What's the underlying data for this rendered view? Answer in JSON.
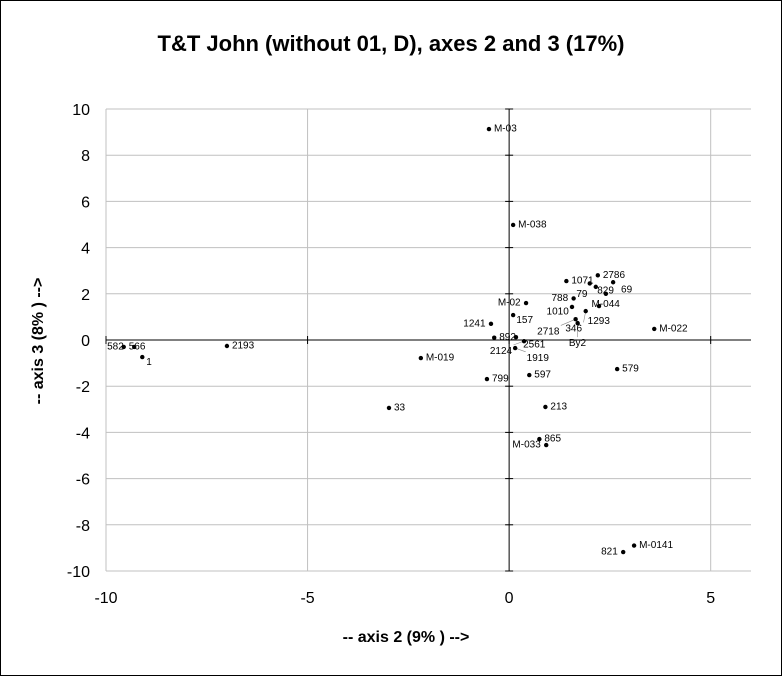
{
  "chart_data": {
    "type": "scatter",
    "title": "T&T John (without 01, D), axes  2 and  3 (17%)",
    "xlabel": "-- axis 2 (9% ) -->",
    "ylabel": "-- axis 3 (8% )  -->",
    "xlim": [
      -10,
      6
    ],
    "ylim": [
      -10,
      10
    ],
    "xticks": [
      -10,
      -5,
      0,
      5
    ],
    "yticks": [
      -10,
      -8,
      -6,
      -4,
      -2,
      0,
      2,
      4,
      6,
      8,
      10
    ],
    "grid": true,
    "points": [
      {
        "label": "M-03",
        "x": -0.5,
        "y": 9.13
      },
      {
        "label": "M-038",
        "x": 0.1,
        "y": 4.98
      },
      {
        "label": "1071",
        "x": 1.42,
        "y": 2.55
      },
      {
        "label": "2786",
        "x": 2.2,
        "y": 2.8
      },
      {
        "label": "829",
        "x": 2.0,
        "y": 2.45
      },
      {
        "label": "79",
        "x": 2.15,
        "y": 2.3
      },
      {
        "label": "69",
        "x": 2.58,
        "y": 2.5
      },
      {
        "label": "M-044",
        "x": 2.4,
        "y": 2.0
      },
      {
        "label": "788",
        "x": 1.6,
        "y": 1.8
      },
      {
        "label": "1010",
        "x": 1.56,
        "y": 1.43
      },
      {
        "label": "1293",
        "x": 2.23,
        "y": 1.47
      },
      {
        "label": "346",
        "x": 1.9,
        "y": 1.25
      },
      {
        "label": "2718",
        "x": 1.65,
        "y": 0.9
      },
      {
        "label": "By2",
        "x": 1.7,
        "y": 0.73
      },
      {
        "label": "M-02",
        "x": 0.42,
        "y": 1.6
      },
      {
        "label": "157",
        "x": 0.1,
        "y": 1.08
      },
      {
        "label": "1241",
        "x": -0.45,
        "y": 0.7
      },
      {
        "label": "M-022",
        "x": 3.6,
        "y": 0.48
      },
      {
        "label": "892",
        "x": -0.37,
        "y": 0.1
      },
      {
        "label": "2561",
        "x": 0.17,
        "y": 0.12
      },
      {
        "label": "2124",
        "x": 0.37,
        "y": -0.05
      },
      {
        "label": "1919",
        "x": 0.15,
        "y": -0.35
      },
      {
        "label": "566",
        "x": -9.56,
        "y": -0.3
      },
      {
        "label": "582",
        "x": -9.3,
        "y": -0.3
      },
      {
        "label": "1",
        "x": -9.1,
        "y": -0.74
      },
      {
        "label": "2193",
        "x": -7.0,
        "y": -0.26
      },
      {
        "label": "M-019",
        "x": -2.19,
        "y": -0.78
      },
      {
        "label": "799",
        "x": -0.55,
        "y": -1.69
      },
      {
        "label": "597",
        "x": 0.5,
        "y": -1.52
      },
      {
        "label": "579",
        "x": 2.68,
        "y": -1.26
      },
      {
        "label": "33",
        "x": -2.98,
        "y": -2.94
      },
      {
        "label": "213",
        "x": 0.9,
        "y": -2.9
      },
      {
        "label": "865",
        "x": 0.75,
        "y": -4.29
      },
      {
        "label": "M-033",
        "x": 0.92,
        "y": -4.55
      },
      {
        "label": "M-0141",
        "x": 3.1,
        "y": -8.9
      },
      {
        "label": "821",
        "x": 2.83,
        "y": -9.18
      }
    ]
  }
}
